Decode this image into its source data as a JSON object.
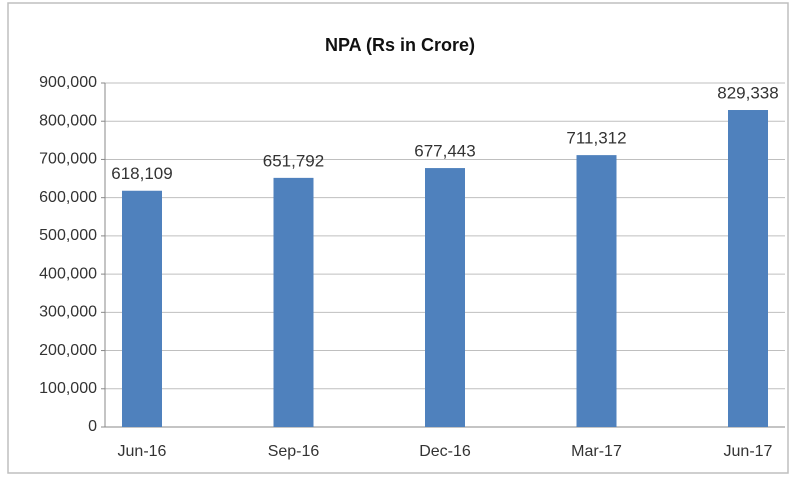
{
  "chart_data": {
    "type": "bar",
    "title": "NPA (Rs in Crore)",
    "categories": [
      "Jun-16",
      "Sep-16",
      "Dec-16",
      "Mar-17",
      "Jun-17"
    ],
    "values": [
      618109,
      651792,
      677443,
      711312,
      829338
    ],
    "value_labels": [
      "618,109",
      "651,792",
      "677,443",
      "711,312",
      "829,338"
    ],
    "color": "#4f81bd",
    "ylim": [
      0,
      900000
    ],
    "yticks": [
      0,
      {
        "value": 100000,
        "label": "100,000"
      },
      {
        "value": 200000,
        "label": "200,000"
      },
      {
        "value": 300000,
        "label": "300,000"
      },
      {
        "value": 400000,
        "label": "400,000"
      },
      {
        "value": 500000,
        "label": "500,000"
      },
      {
        "value": 600000,
        "label": "600,000"
      },
      {
        "value": 700000,
        "label": "700,000"
      },
      {
        "value": 800000,
        "label": "800,000"
      },
      {
        "value": 900000,
        "label": "900,000"
      }
    ],
    "grid": true
  }
}
